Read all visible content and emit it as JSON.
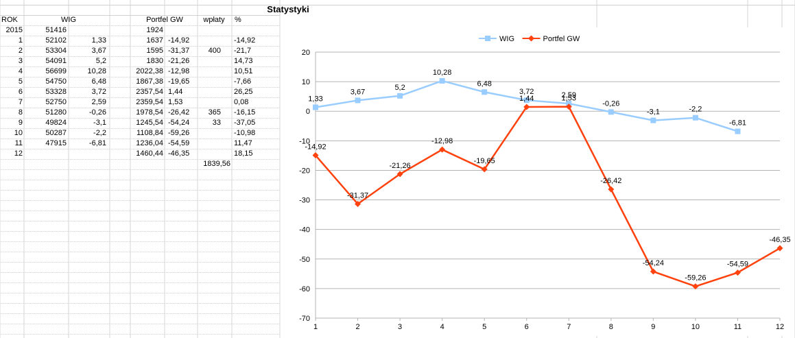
{
  "sheet": {
    "title": "Statystyki",
    "headers": {
      "rok": "ROK",
      "wig": "WIG",
      "portfel": "Portfel GW",
      "wplaty": "wpłaty",
      "pct": "%"
    },
    "rows": [
      {
        "rok": "2015",
        "wig": "51416",
        "wig_pct": "",
        "portfel": "1924",
        "portfel_pct": "",
        "wplaty": "",
        "pct": ""
      },
      {
        "rok": "1",
        "wig": "52102",
        "wig_pct": "1,33",
        "portfel": "1637",
        "portfel_pct": "-14,92",
        "wplaty": "",
        "pct": "-14,92"
      },
      {
        "rok": "2",
        "wig": "53304",
        "wig_pct": "3,67",
        "portfel": "1595",
        "portfel_pct": "-31,37",
        "wplaty": "400",
        "pct": "-21,7"
      },
      {
        "rok": "3",
        "wig": "54091",
        "wig_pct": "5,2",
        "portfel": "1830",
        "portfel_pct": "-21,26",
        "wplaty": "",
        "pct": "14,73"
      },
      {
        "rok": "4",
        "wig": "56699",
        "wig_pct": "10,28",
        "portfel": "2022,38",
        "portfel_pct": "-12,98",
        "wplaty": "",
        "pct": "10,51"
      },
      {
        "rok": "5",
        "wig": "54750",
        "wig_pct": "6,48",
        "portfel": "1867,38",
        "portfel_pct": "-19,65",
        "wplaty": "",
        "pct": "-7,66"
      },
      {
        "rok": "6",
        "wig": "53328",
        "wig_pct": "3,72",
        "portfel": "2357,54",
        "portfel_pct": "1,44",
        "wplaty": "",
        "pct": "26,25"
      },
      {
        "rok": "7",
        "wig": "52750",
        "wig_pct": "2,59",
        "portfel": "2359,54",
        "portfel_pct": "1,53",
        "wplaty": "",
        "pct": "0,08"
      },
      {
        "rok": "8",
        "wig": "51280",
        "wig_pct": "-0,26",
        "portfel": "1978,54",
        "portfel_pct": "-26,42",
        "wplaty": "365",
        "pct": "-16,15"
      },
      {
        "rok": "9",
        "wig": "49824",
        "wig_pct": "-3,1",
        "portfel": "1245,54",
        "portfel_pct": "-54,24",
        "wplaty": "33",
        "pct": "-37,05"
      },
      {
        "rok": "10",
        "wig": "50287",
        "wig_pct": "-2,2",
        "portfel": "1108,84",
        "portfel_pct": "-59,26",
        "wplaty": "",
        "pct": "-10,98"
      },
      {
        "rok": "11",
        "wig": "47915",
        "wig_pct": "-6,81",
        "portfel": "1236,04",
        "portfel_pct": "-54,59",
        "wplaty": "",
        "pct": "11,47"
      },
      {
        "rok": "12",
        "wig": "",
        "wig_pct": "",
        "portfel": "1460,44",
        "portfel_pct": "-46,35",
        "wplaty": "",
        "pct": "18,15"
      }
    ],
    "wplaty_total": "1839,56"
  },
  "chart_data": {
    "type": "line",
    "x": [
      1,
      2,
      3,
      4,
      5,
      6,
      7,
      8,
      9,
      10,
      11,
      12
    ],
    "ylim": [
      -70,
      20
    ],
    "yticks": [
      20,
      10,
      0,
      -10,
      -20,
      -30,
      -40,
      -50,
      -60,
      -70
    ],
    "grid": true,
    "legend": "top",
    "series": [
      {
        "name": "WIG",
        "color": "#99ccff",
        "marker": "square",
        "values": [
          1.33,
          3.67,
          5.2,
          10.28,
          6.48,
          3.72,
          2.59,
          -0.26,
          -3.1,
          -2.2,
          -6.81,
          null
        ],
        "labels": [
          "1,33",
          "3,67",
          "5,2",
          "10,28",
          "6,48",
          "3,72",
          "2,59",
          "-0,26",
          "-3,1",
          "-2,2",
          "-6,81",
          ""
        ]
      },
      {
        "name": "Portfel GW",
        "color": "#ff420e",
        "marker": "diamond",
        "values": [
          -14.92,
          -31.37,
          -21.26,
          -12.98,
          -19.65,
          1.44,
          1.53,
          -26.42,
          -54.24,
          -59.26,
          -54.59,
          -46.35
        ],
        "labels": [
          "-14,92",
          "-31,37",
          "-21,26",
          "-12,98",
          "-19,65",
          "1,44",
          "1,53",
          "-26,42",
          "-54,24",
          "-59,26",
          "-54,59",
          "-46,35"
        ]
      }
    ]
  }
}
